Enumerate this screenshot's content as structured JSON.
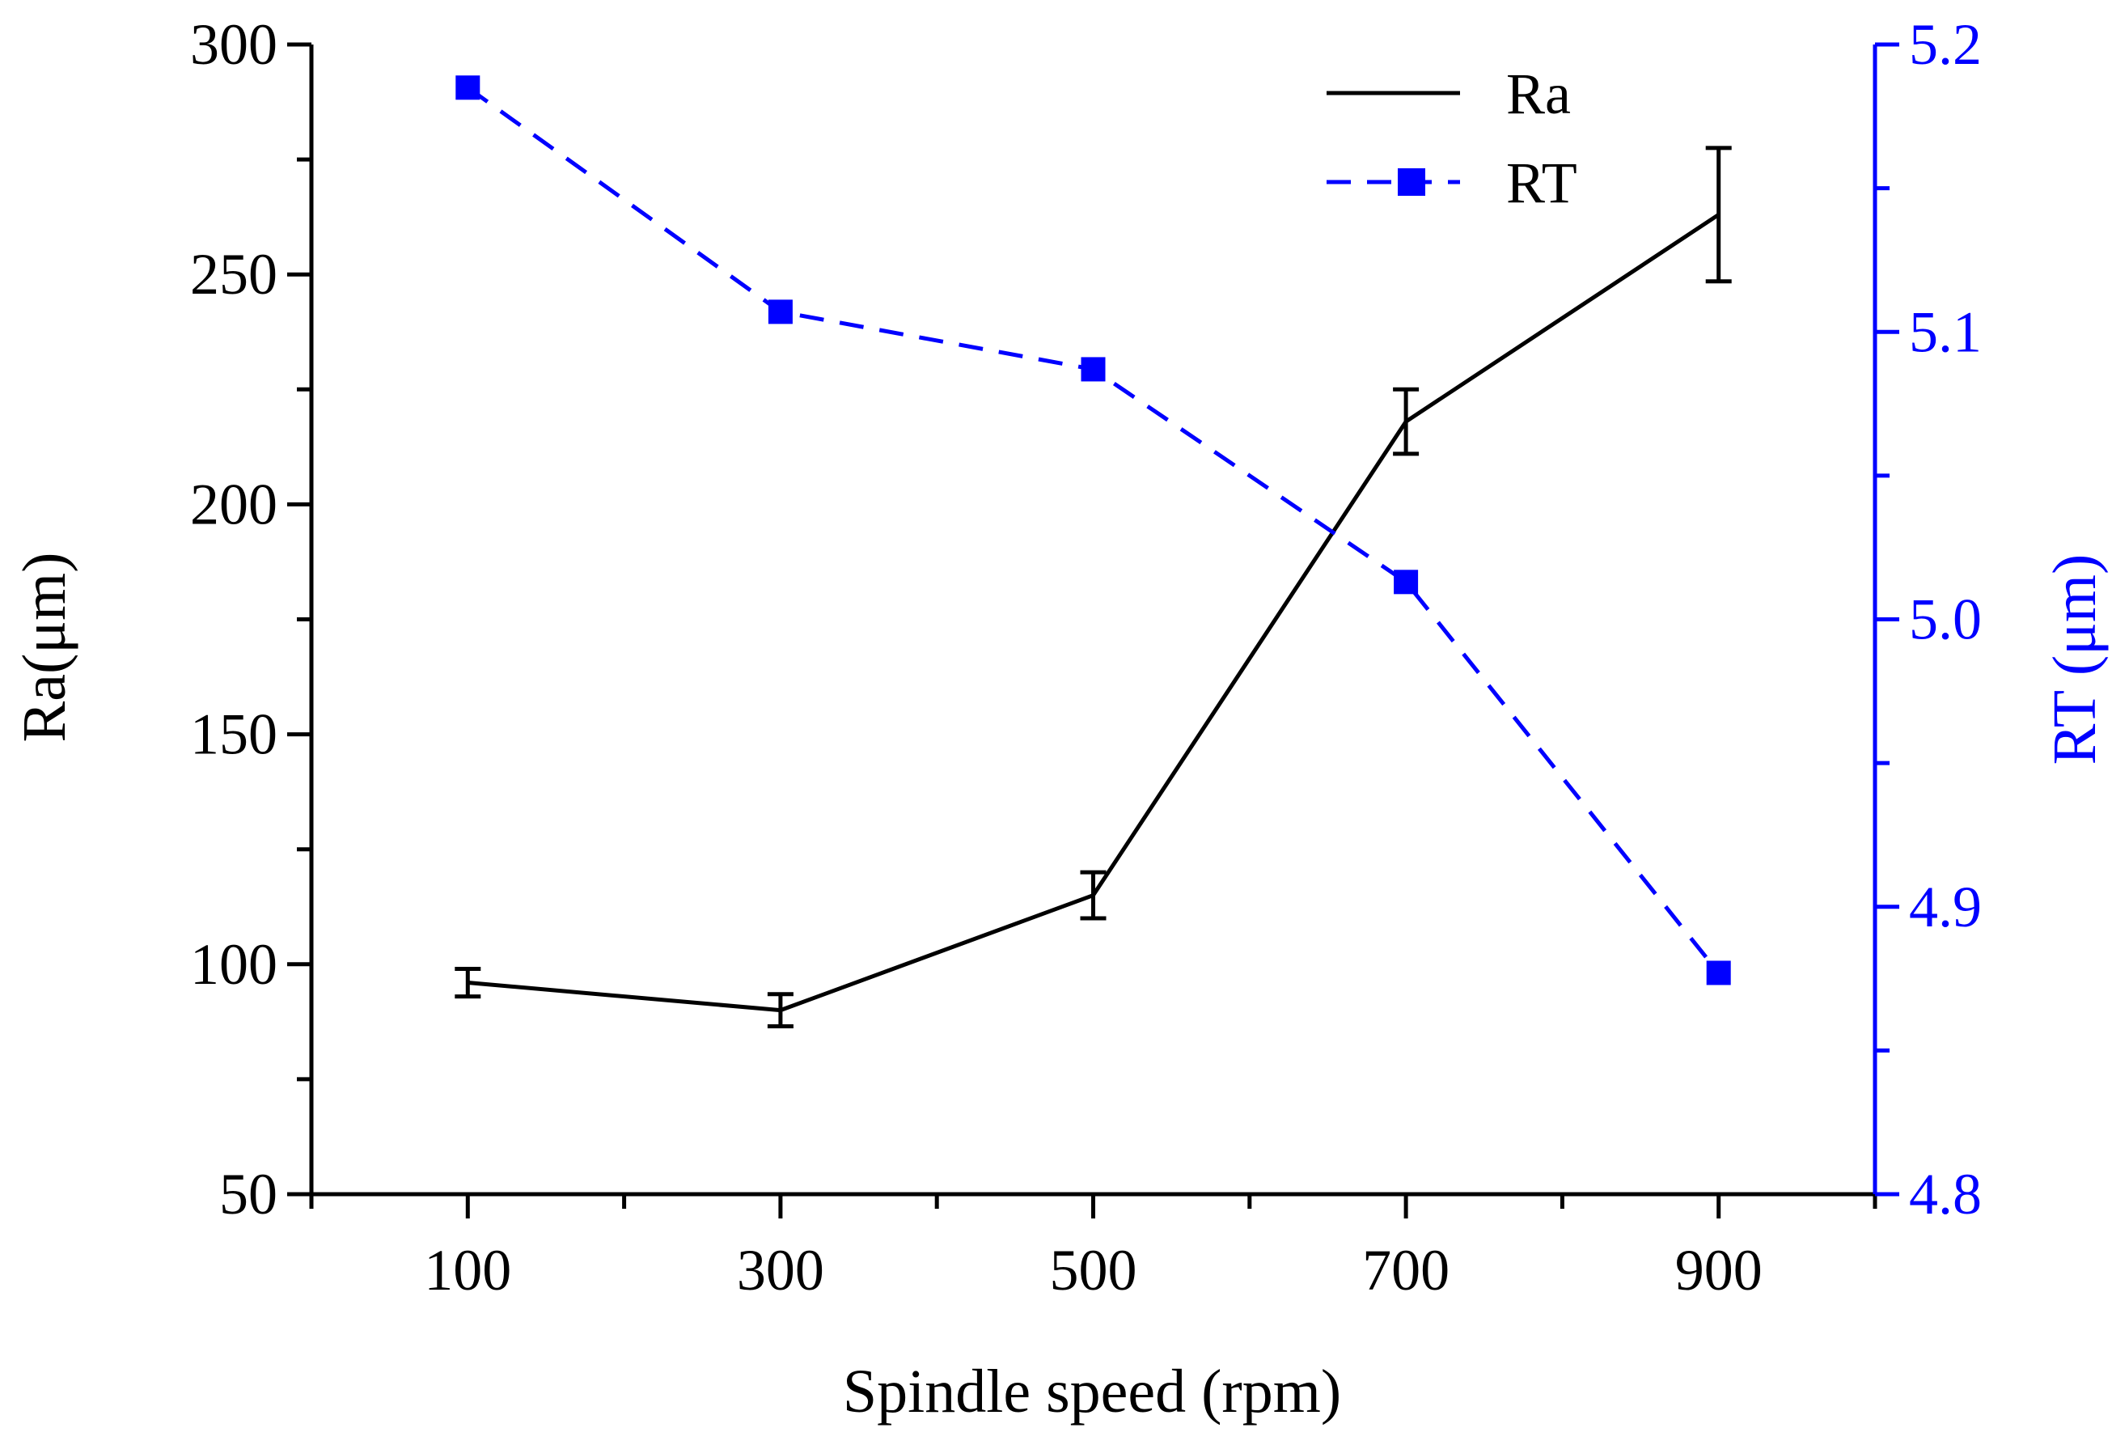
{
  "colors": {
    "ra": "#000000",
    "rt": "#0000ff",
    "axis_left": "#000000",
    "axis_right": "#0000ff",
    "background": "#ffffff"
  },
  "chart_data": {
    "type": "line",
    "xlabel": "Spindle speed (rpm)",
    "ylabel_left": "Ra(μm)",
    "ylabel_right": "RT (μm)",
    "x_ticks": [
      "100",
      "300",
      "500",
      "700",
      "900"
    ],
    "y_left_ticks": [
      "50",
      "100",
      "150",
      "200",
      "250",
      "300"
    ],
    "y_right_ticks": [
      "4.8",
      "4.9",
      "5.0",
      "5.1",
      "5.2"
    ],
    "xlim": [
      0,
      1000
    ],
    "ylim_left": [
      50,
      300
    ],
    "ylim_right": [
      4.8,
      5.2
    ],
    "legend_position": "top-right",
    "grid": false,
    "series": [
      {
        "name": "Ra",
        "axis": "left",
        "style": "solid line with error bars",
        "x": [
          100,
          300,
          500,
          700,
          900
        ],
        "y": [
          96,
          90,
          115,
          218,
          263
        ],
        "error": [
          3,
          3.5,
          5,
          7,
          14.5
        ]
      },
      {
        "name": "RT",
        "axis": "right",
        "style": "dashed line with square markers",
        "x": [
          100,
          300,
          500,
          700,
          900
        ],
        "y": [
          5.185,
          5.107,
          5.087,
          5.013,
          4.877
        ]
      }
    ]
  }
}
